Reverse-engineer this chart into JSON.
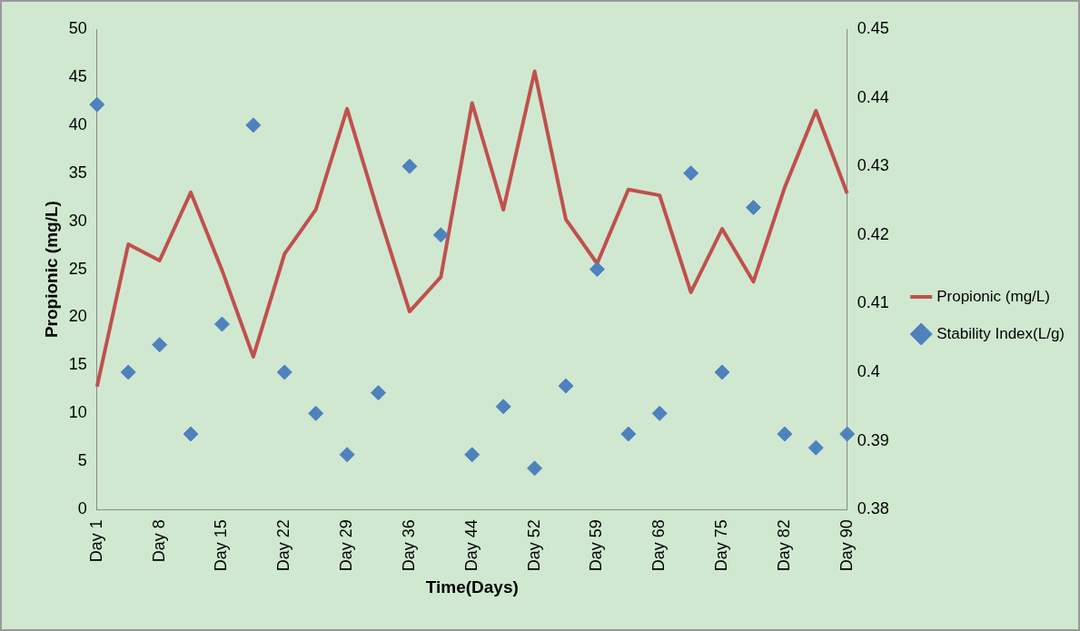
{
  "chart_data": {
    "type": "line",
    "xlabel": "Time(Days)",
    "ylabel": "Propionic (mg/L)",
    "categories": [
      "Day 1",
      null,
      "Day 8",
      null,
      "Day 15",
      null,
      "Day 22",
      null,
      "Day 29",
      null,
      "Day 36",
      null,
      "Day 44",
      null,
      "Day 52",
      null,
      "Day 59",
      null,
      "Day 68",
      null,
      "Day 75",
      null,
      "Day 82",
      null,
      "Day 90"
    ],
    "series": [
      {
        "name": "Propionic (mg/L)",
        "type": "line",
        "color": "#c0504d",
        "values": [
          12.8,
          27.6,
          25.9,
          33.0,
          24.9,
          15.9,
          26.6,
          31.2,
          41.7,
          30.9,
          20.6,
          24.2,
          42.3,
          31.2,
          45.6,
          30.2,
          25.6,
          33.3,
          32.7,
          22.6,
          29.2,
          23.7,
          33.5,
          41.5,
          32.9
        ]
      },
      {
        "name": "Stability Index(L/g)",
        "type": "scatter",
        "axis": "y2",
        "marker": "diamond",
        "color": "#4f81bd",
        "values": [
          0.439,
          0.4,
          0.404,
          0.391,
          0.407,
          0.436,
          0.4,
          0.394,
          0.388,
          0.397,
          0.43,
          0.42,
          0.388,
          0.395,
          0.386,
          0.398,
          0.415,
          0.391,
          0.394,
          0.429,
          0.4,
          0.424,
          0.391,
          0.389,
          0.391
        ]
      }
    ],
    "ylim": [
      0,
      50
    ],
    "yticks": [
      0,
      5,
      10,
      15,
      20,
      25,
      30,
      35,
      40,
      45,
      50
    ],
    "y2lim": [
      0.38,
      0.45
    ],
    "y2ticks": [
      0.38,
      0.39,
      0.4,
      0.41,
      0.42,
      0.43,
      0.44,
      0.45
    ],
    "grid": false,
    "legend": "right"
  }
}
